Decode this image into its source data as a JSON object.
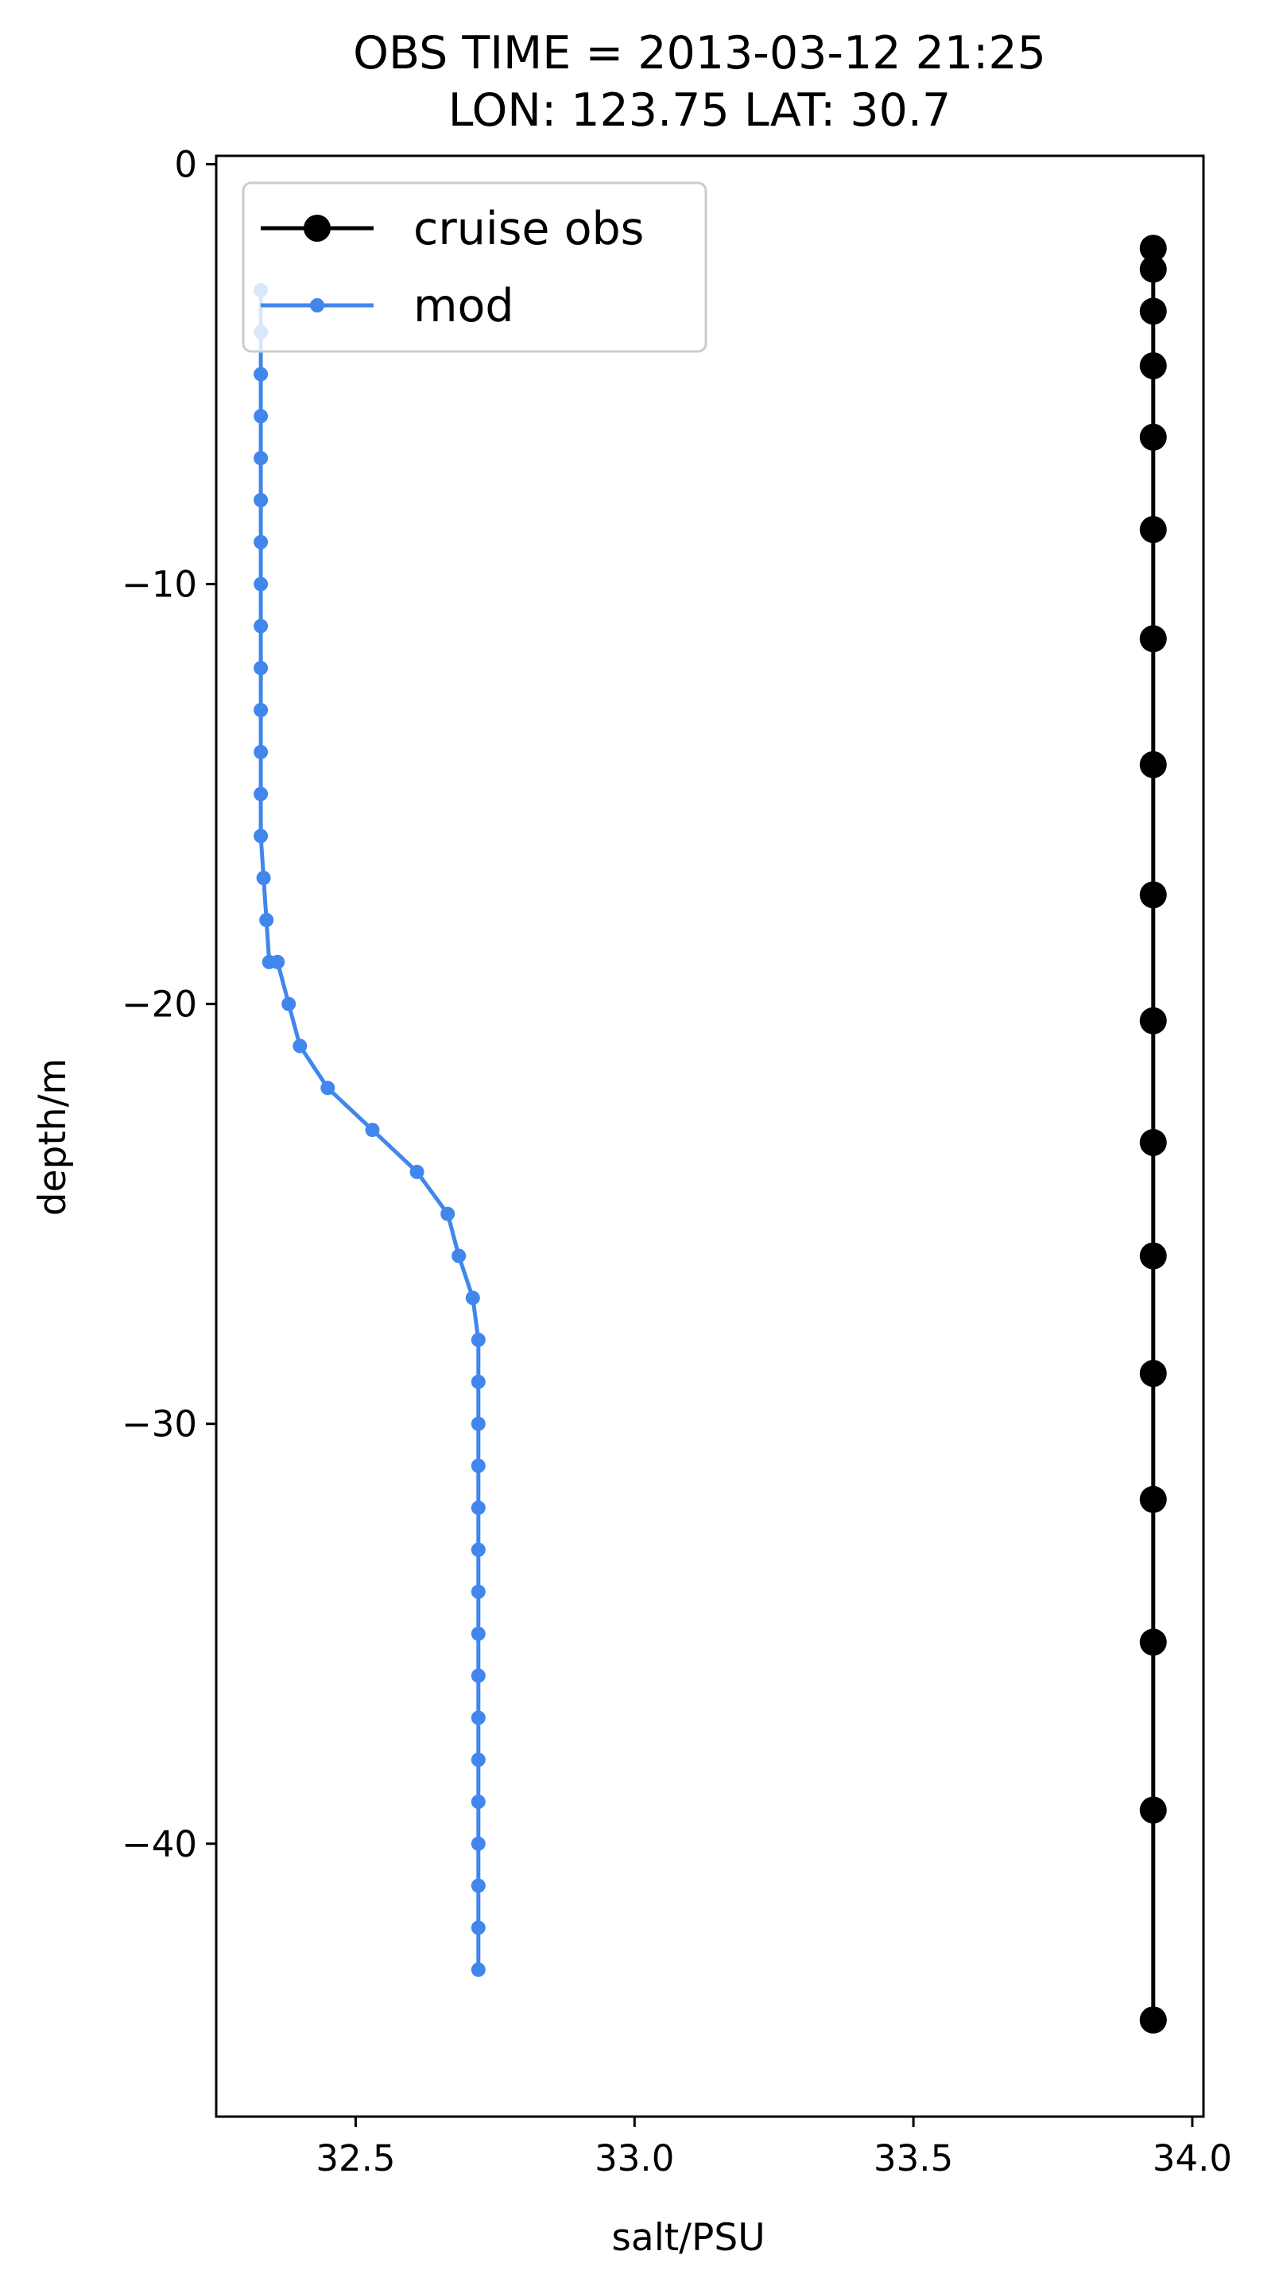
{
  "chart_data": {
    "type": "line",
    "title_lines": [
      "OBS TIME = 2013-03-12 21:25",
      "LON: 123.75 LAT: 30.7"
    ],
    "xlabel": "salt/PSU",
    "ylabel": "depth/m",
    "xlim": [
      32.25,
      34.02
    ],
    "ylim": [
      -46.5,
      0.2
    ],
    "xticks": [
      32.5,
      33.0,
      33.5,
      34.0
    ],
    "xtick_labels": [
      "32.5",
      "33.0",
      "33.5",
      "34.0"
    ],
    "yticks": [
      0,
      -10,
      -20,
      -30,
      -40
    ],
    "ytick_labels": [
      "0",
      "−10",
      "−20",
      "−30",
      "−40"
    ],
    "grid": false,
    "legend_position": "top-left",
    "series": [
      {
        "name": "cruise obs",
        "color": "#000000",
        "marker": "large-circle",
        "x": [
          33.93,
          33.93,
          33.93,
          33.93,
          33.93,
          33.93,
          33.93,
          33.93,
          33.93,
          33.93,
          33.93,
          33.93,
          33.93,
          33.93,
          33.93,
          33.93,
          33.93,
          33.93
        ],
        "y": [
          -2.0,
          -2.5,
          -3.5,
          -4.8,
          -6.5,
          -8.7,
          -11.3,
          -14.3,
          -17.4,
          -20.4,
          -23.3,
          -26.0,
          -28.8,
          -31.8,
          -35.2,
          -39.2,
          -44.2,
          -44.2
        ]
      },
      {
        "name": "mod",
        "color": "#4186ec",
        "marker": "small-circle",
        "x": [
          32.33,
          32.33,
          32.33,
          32.33,
          32.33,
          32.33,
          32.33,
          32.33,
          32.33,
          32.33,
          32.33,
          32.33,
          32.33,
          32.33,
          32.335,
          32.34,
          32.345,
          32.36,
          32.38,
          32.4,
          32.45,
          32.53,
          32.61,
          32.665,
          32.685,
          32.71,
          32.72,
          32.72,
          32.72,
          32.72,
          32.72,
          32.72,
          32.72,
          32.72,
          32.72,
          32.72,
          32.72,
          32.72,
          32.72,
          32.72,
          32.72,
          32.72
        ],
        "y": [
          -3,
          -4,
          -5,
          -6,
          -7,
          -8,
          -9,
          -10,
          -11,
          -12,
          -13,
          -14,
          -15,
          -16,
          -17,
          -18,
          -19,
          -19,
          -20,
          -21,
          -22,
          -23,
          -24,
          -25,
          -26,
          -27,
          -28,
          -29,
          -30,
          -31,
          -32,
          -33,
          -34,
          -35,
          -36,
          -37,
          -38,
          -39,
          -40,
          -41,
          -42,
          -43
        ]
      }
    ]
  }
}
